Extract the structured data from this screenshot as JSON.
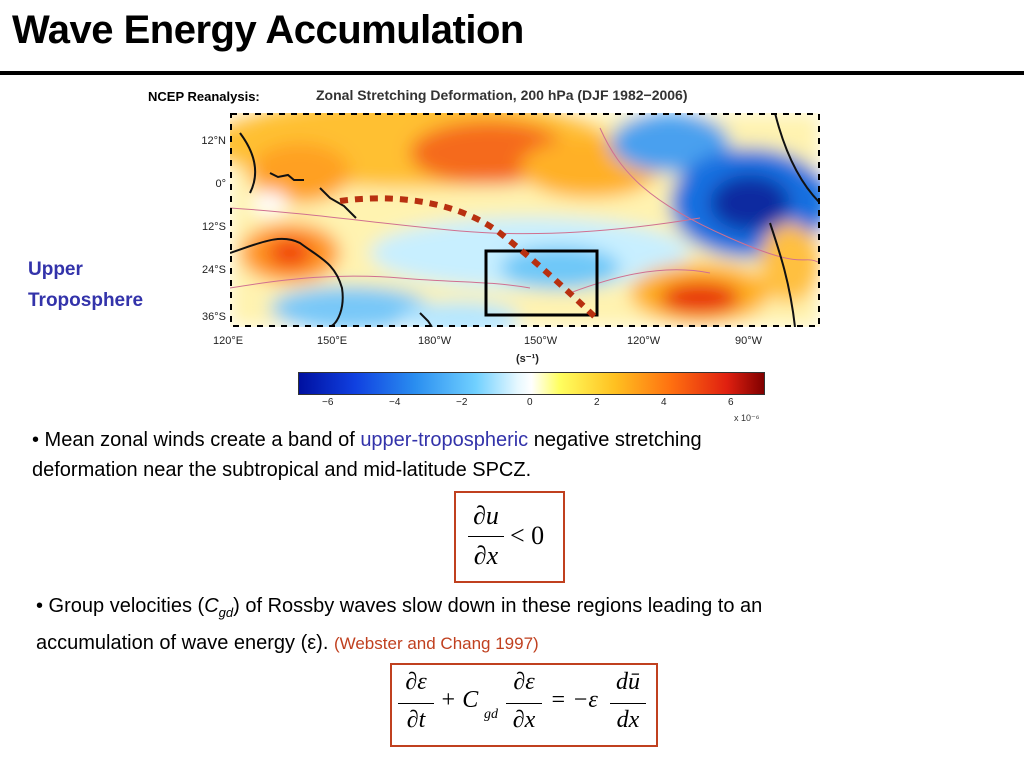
{
  "title": "Wave Energy Accumulation",
  "source_label": "NCEP Reanalysis:",
  "map_title": "Zonal Stretching Deformation, 200 hPa (DJF 1982−2006)",
  "side_label_line1": "Upper",
  "side_label_line2": "Troposphere",
  "lat_labels": [
    "12°N",
    "0°",
    "12°S",
    "24°S",
    "36°S"
  ],
  "lon_labels": [
    "120°E",
    "150°E",
    "180°W",
    "150°W",
    "120°W",
    "90°W"
  ],
  "units_label": "(s⁻¹)",
  "colorbar_ticks": [
    "−6",
    "−4",
    "−2",
    "0",
    "2",
    "4",
    "6"
  ],
  "colorbar_exponent": "x 10⁻⁶",
  "colors": {
    "accent_blue": "#3333aa",
    "citation_red": "#c0401f"
  },
  "bullet1": {
    "prefix": "•  Mean zonal winds create a band of ",
    "highlight": "upper-tropospheric",
    "suffix_line1": " negative stretching",
    "line2": "deformation near the subtropical and mid-latitude SPCZ."
  },
  "bullet2": {
    "prefix": "•  Group velocities (",
    "symbol": "C",
    "subscript": "gd",
    "after_symbol": ")  of Rossby waves slow down in these regions leading to an",
    "line2": "accumulation of wave energy (ε). ",
    "citation": " (Webster and Chang 1997)"
  },
  "equation1": {
    "numerator": "∂u",
    "denominator": "∂x",
    "relation": "< 0"
  },
  "equation2": {
    "t1_num": "∂ε",
    "t1_den": "∂t",
    "plus": "+ C",
    "sub": "gd",
    "t2_num": "∂ε",
    "t2_den": "∂x",
    "eq": "= −ε",
    "t3_num": "dū",
    "t3_den": "dx"
  }
}
